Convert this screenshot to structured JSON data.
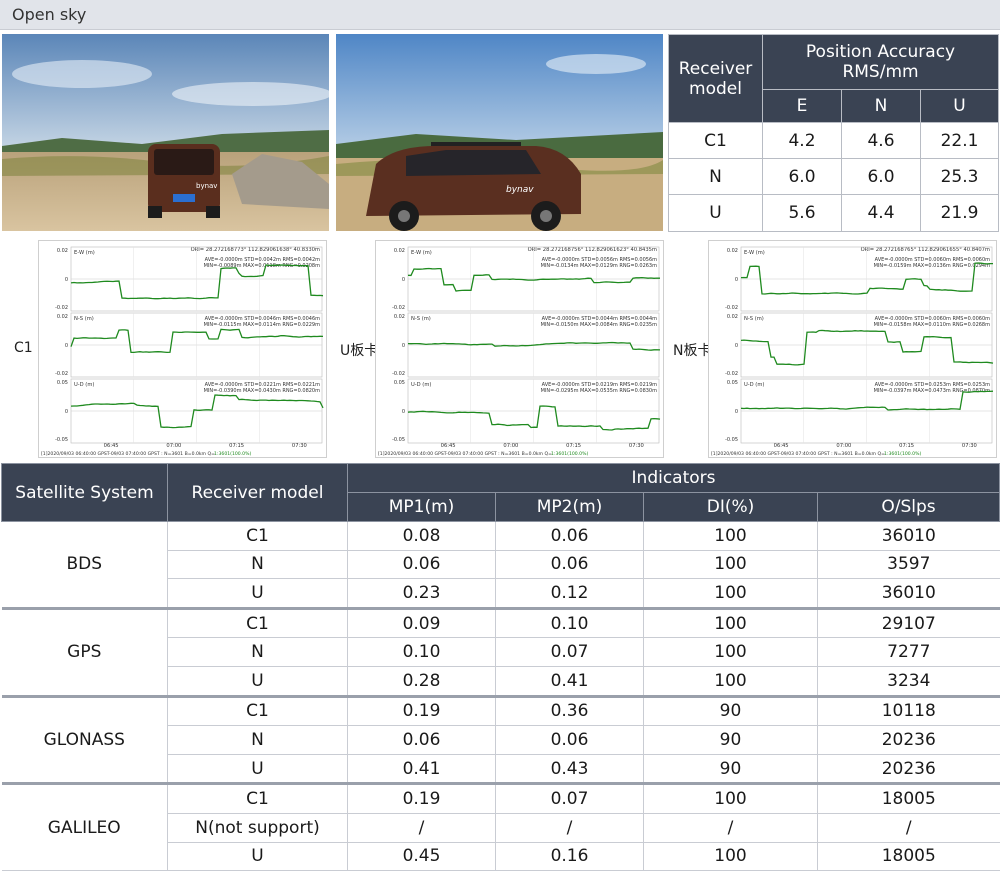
{
  "section_title": "Open sky",
  "photos": [
    {
      "logo_text": "bynav"
    },
    {
      "logo_text": "bynav"
    }
  ],
  "accuracy_table": {
    "corner_header": "Receiver model",
    "group_header": "Position Accuracy RMS/mm",
    "columns": [
      "E",
      "N",
      "U"
    ],
    "rows": [
      {
        "model": "C1",
        "values": [
          "4.2",
          "4.6",
          "22.1"
        ]
      },
      {
        "model": "N",
        "values": [
          "6.0",
          "6.0",
          "25.3"
        ]
      },
      {
        "model": "U",
        "values": [
          "5.6",
          "4.4",
          "21.9"
        ]
      }
    ]
  },
  "plots": [
    {
      "side_label": "C1",
      "header_lines": [
        "ORI= 28.272168773° 112.829061638° 40.8330m"
      ],
      "panels": [
        {
          "name": "E-W (m)",
          "stats": [
            "AVE=-0.0000m STD=0.0042m RMS=0.0042m",
            "MIN=-0.0089m MAX=0.0118m RNG=0.0208m"
          ],
          "ticks": [
            "0.02",
            "0",
            "-0.02"
          ]
        },
        {
          "name": "N-S (m)",
          "stats": [
            "AVE=-0.0000m STD=0.0046m RMS=0.0046m",
            "MIN=-0.0115m MAX=0.0114m RNG=0.0229m"
          ],
          "ticks": [
            "0.02",
            "0",
            "-0.02"
          ]
        },
        {
          "name": "U-D (m)",
          "stats": [
            "AVE=-0.0000m STD=0.0221m RMS=0.0221m",
            "MIN=-0.0390m MAX=0.0430m RNG=0.0820m"
          ],
          "ticks": [
            "0.05",
            "0",
            "-0.05"
          ]
        }
      ],
      "x_ticks": [
        "06:45",
        "07:00",
        "07:15",
        "07:30"
      ],
      "footer": "[1]2020/09/03 06:40:00 GPST-09/03 07:40:00 GPST : N=3601 B=0.0km Q=",
      "footer_q": "1:3601(100.0%)"
    },
    {
      "side_label": "U板卡",
      "header_lines": [
        "ORI= 28.272168756° 112.829061623° 40.8435m"
      ],
      "panels": [
        {
          "name": "E-W (m)",
          "stats": [
            "AVE=-0.0000m STD=0.0056m RMS=0.0056m",
            "MIN=-0.0134m MAX=0.0129m RNG=0.0263m"
          ],
          "ticks": [
            "0.02",
            "0",
            "-0.02"
          ]
        },
        {
          "name": "N-S (m)",
          "stats": [
            "AVE=-0.0000m STD=0.0044m RMS=0.0044m",
            "MIN=-0.0150m MAX=0.0084m RNG=0.0235m"
          ],
          "ticks": [
            "0.02",
            "0",
            "-0.02"
          ]
        },
        {
          "name": "U-D (m)",
          "stats": [
            "AVE=-0.0000m STD=0.0219m RMS=0.0219m",
            "MIN=-0.0295m MAX=0.0535m RNG=0.0830m"
          ],
          "ticks": [
            "0.05",
            "0",
            "-0.05"
          ]
        }
      ],
      "x_ticks": [
        "06:45",
        "07:00",
        "07:15",
        "07:30"
      ],
      "footer": "[1]2020/09/03 06:40:00 GPST-09/03 07:40:00 GPST : N=3601 B=0.0km Q=",
      "footer_q": "1:3601(100.0%)"
    },
    {
      "side_label": "N板卡",
      "header_lines": [
        "ORI= 28.272168765° 112.829061655° 40.8407m"
      ],
      "panels": [
        {
          "name": "E-W (m)",
          "stats": [
            "AVE=-0.0000m STD=0.0060m RMS=0.0060m",
            "MIN=-0.0159m MAX=0.0136m RNG=0.0294m"
          ],
          "ticks": [
            "0.02",
            "0",
            "-0.02"
          ]
        },
        {
          "name": "N-S (m)",
          "stats": [
            "AVE=-0.0000m STD=0.0060m RMS=0.0060m",
            "MIN=-0.0158m MAX=0.0110m RNG=0.0268m"
          ],
          "ticks": [
            "0.02",
            "0",
            "-0.02"
          ]
        },
        {
          "name": "U-D (m)",
          "stats": [
            "AVE=-0.0000m STD=0.0253m RMS=0.0253m",
            "MIN=-0.0397m MAX=0.0473m RNG=0.0870m"
          ],
          "ticks": [
            "0.05",
            "0",
            "-0.05"
          ]
        }
      ],
      "x_ticks": [
        "06:45",
        "07:00",
        "07:15",
        "07:30"
      ],
      "footer": "[1]2020/09/03 06:40:00 GPST-09/03 07:40:00 GPST : N=3601 B=0.0km Q=",
      "footer_q": "1:3601(100.0%)"
    }
  ],
  "indicators_table": {
    "headers": {
      "system": "Satellite System",
      "model": "Receiver model",
      "group": "Indicators",
      "columns": [
        "MP1(m)",
        "MP2(m)",
        "DI(%)",
        "O/Slps"
      ]
    },
    "groups": [
      {
        "system": "BDS",
        "rows": [
          {
            "model": "C1",
            "values": [
              "0.08",
              "0.06",
              "100",
              "36010"
            ]
          },
          {
            "model": "N",
            "values": [
              "0.06",
              "0.06",
              "100",
              "3597"
            ]
          },
          {
            "model": "U",
            "values": [
              "0.23",
              "0.12",
              "100",
              "36010"
            ]
          }
        ]
      },
      {
        "system": "GPS",
        "rows": [
          {
            "model": "C1",
            "values": [
              "0.09",
              "0.10",
              "100",
              "29107"
            ]
          },
          {
            "model": "N",
            "values": [
              "0.10",
              "0.07",
              "100",
              "7277"
            ]
          },
          {
            "model": "U",
            "values": [
              "0.28",
              "0.41",
              "100",
              "3234"
            ]
          }
        ]
      },
      {
        "system": "GLONASS",
        "rows": [
          {
            "model": "C1",
            "values": [
              "0.19",
              "0.36",
              "90",
              "10118"
            ]
          },
          {
            "model": "N",
            "values": [
              "0.06",
              "0.06",
              "90",
              "20236"
            ]
          },
          {
            "model": "U",
            "values": [
              "0.41",
              "0.43",
              "90",
              "20236"
            ]
          }
        ]
      },
      {
        "system": "GALILEO",
        "rows": [
          {
            "model": "C1",
            "values": [
              "0.19",
              "0.07",
              "100",
              "18005"
            ]
          },
          {
            "model": "N(not support)",
            "values": [
              "/",
              "/",
              "/",
              "/"
            ]
          },
          {
            "model": "U",
            "values": [
              "0.45",
              "0.16",
              "100",
              "18005"
            ]
          }
        ]
      }
    ]
  }
}
